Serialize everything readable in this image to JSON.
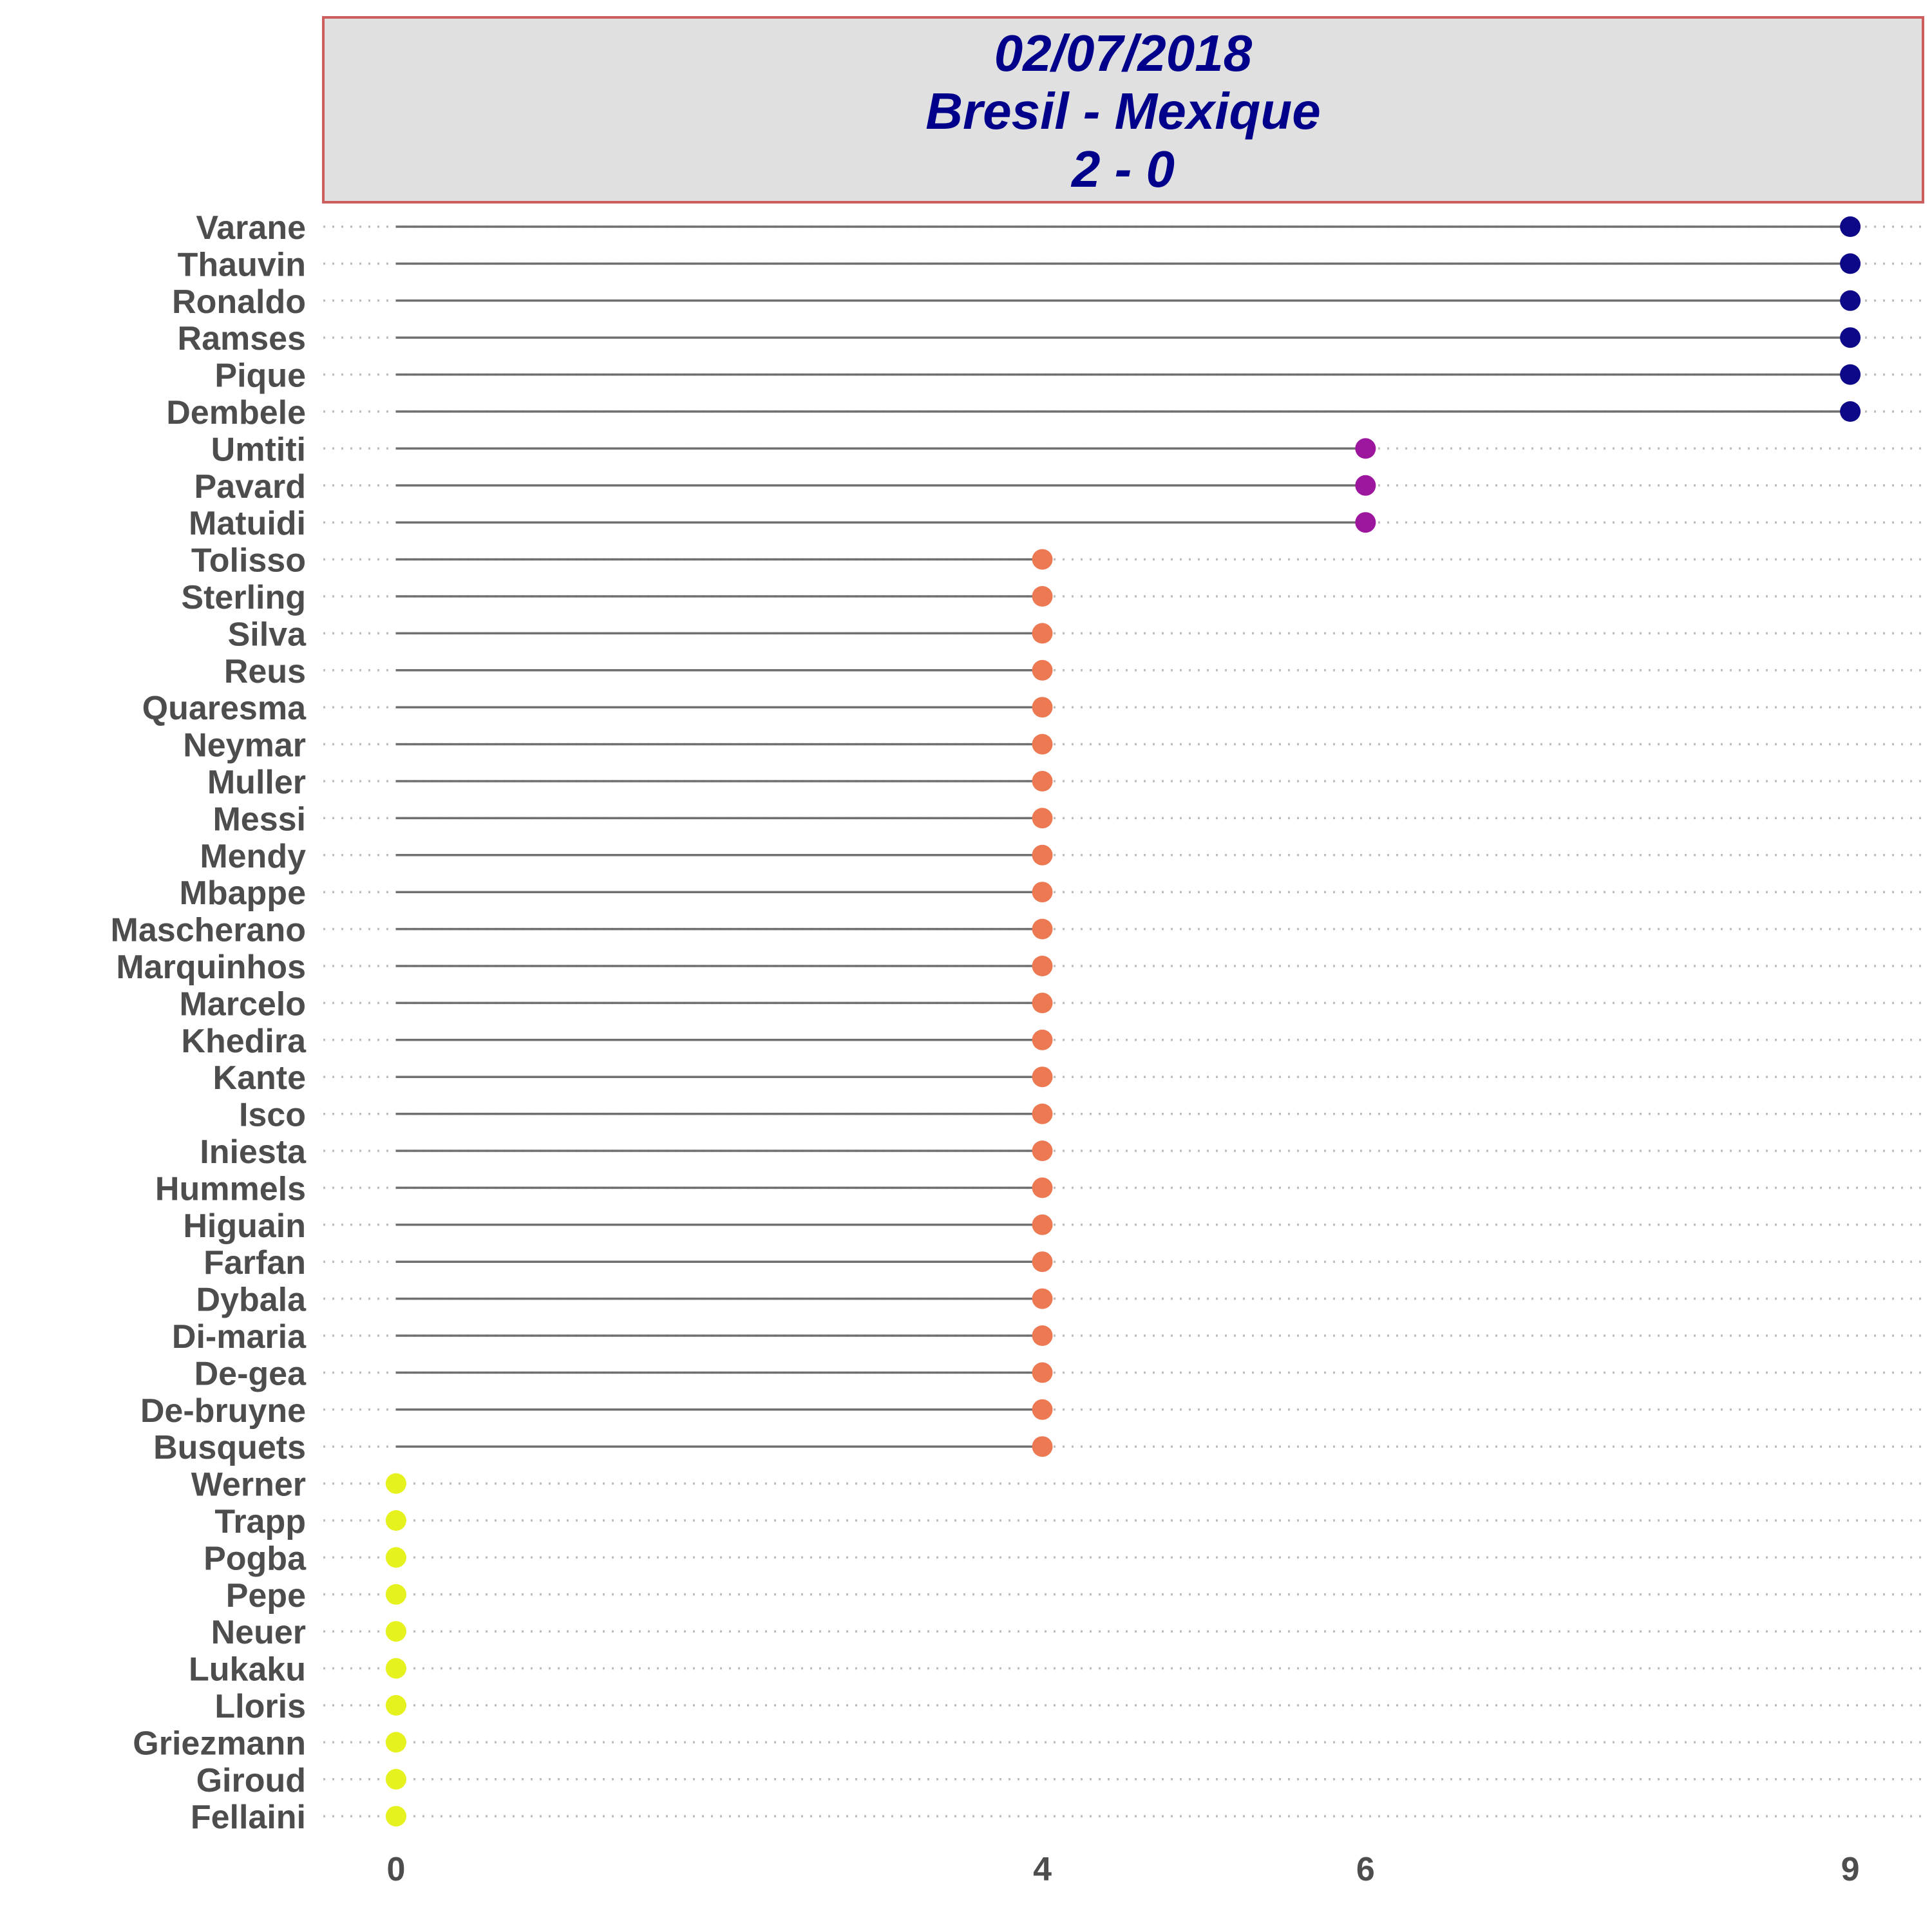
{
  "header": {
    "date": "02/07/2018",
    "match": "Bresil - Mexique",
    "score": "2 - 0"
  },
  "colors": {
    "header_bg": "#e0e0e0",
    "header_border": "#cd5c5c",
    "title": "#00008b",
    "segment": "#707070",
    "grid": "#bdbdbd",
    "text": "#4d4d4d",
    "value_9": "#0d0887",
    "value_6": "#9c179e",
    "value_4": "#ed7953",
    "value_0": "#e6f21e"
  },
  "chart_data": {
    "type": "lollipop",
    "orientation": "horizontal",
    "xlabel": "",
    "ylabel": "",
    "x_ticks": [
      0,
      4,
      6,
      9
    ],
    "xlim": [
      -0.45,
      9.45
    ],
    "grid": "dotted horizontal lines per category",
    "legend": "none",
    "categories": [
      "Varane",
      "Thauvin",
      "Ronaldo",
      "Ramses",
      "Pique",
      "Dembele",
      "Umtiti",
      "Pavard",
      "Matuidi",
      "Tolisso",
      "Sterling",
      "Silva",
      "Reus",
      "Quaresma",
      "Neymar",
      "Muller",
      "Messi",
      "Mendy",
      "Mbappe",
      "Mascherano",
      "Marquinhos",
      "Marcelo",
      "Khedira",
      "Kante",
      "Isco",
      "Iniesta",
      "Hummels",
      "Higuain",
      "Farfan",
      "Dybala",
      "Di-maria",
      "De-gea",
      "De-bruyne",
      "Busquets",
      "Werner",
      "Trapp",
      "Pogba",
      "Pepe",
      "Neuer",
      "Lukaku",
      "Lloris",
      "Griezmann",
      "Giroud",
      "Fellaini"
    ],
    "values": [
      9,
      9,
      9,
      9,
      9,
      9,
      6,
      6,
      6,
      4,
      4,
      4,
      4,
      4,
      4,
      4,
      4,
      4,
      4,
      4,
      4,
      4,
      4,
      4,
      4,
      4,
      4,
      4,
      4,
      4,
      4,
      4,
      4,
      4,
      0,
      0,
      0,
      0,
      0,
      0,
      0,
      0,
      0,
      0
    ]
  }
}
